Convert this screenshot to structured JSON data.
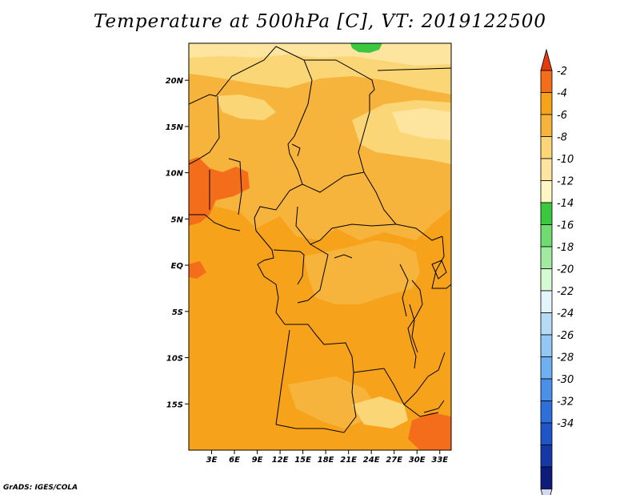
{
  "title": "Temperature at 500hPa [C], VT: 2019122500",
  "credit": "GrADS: IGES/COLA",
  "map": {
    "lon_range": [
      0,
      34.5
    ],
    "lat_range": [
      -20,
      24
    ],
    "lat_ticks": [
      {
        "lat": 20,
        "label": "20N"
      },
      {
        "lat": 15,
        "label": "15N"
      },
      {
        "lat": 10,
        "label": "10N"
      },
      {
        "lat": 5,
        "label": "5N"
      },
      {
        "lat": 0,
        "label": "EQ"
      },
      {
        "lat": -5,
        "label": "5S"
      },
      {
        "lat": -10,
        "label": "10S"
      },
      {
        "lat": -15,
        "label": "15S"
      }
    ],
    "lon_ticks": [
      {
        "lon": 3,
        "label": "3E"
      },
      {
        "lon": 6,
        "label": "6E"
      },
      {
        "lon": 9,
        "label": "9E"
      },
      {
        "lon": 12,
        "label": "12E"
      },
      {
        "lon": 15,
        "label": "15E"
      },
      {
        "lon": 18,
        "label": "18E"
      },
      {
        "lon": 21,
        "label": "21E"
      },
      {
        "lon": 24,
        "label": "24E"
      },
      {
        "lon": 27,
        "label": "27E"
      },
      {
        "lon": 30,
        "label": "30E"
      },
      {
        "lon": 33,
        "label": "33E"
      }
    ],
    "colors": {
      "base": "#f7a21b",
      "warm": "#f7b43c",
      "light": "#fbd677",
      "pale": "#fde59f",
      "hot": "#f46d1b",
      "green": "#3cc740",
      "border": "#000000"
    }
  },
  "colorbar": {
    "labels": [
      "-2",
      "-4",
      "-6",
      "-8",
      "-10",
      "-12",
      "-14",
      "-16",
      "-18",
      "-20",
      "-22",
      "-24",
      "-26",
      "-28",
      "-30",
      "-32",
      "-34"
    ],
    "colors": [
      "#e33b0e",
      "#f46d1b",
      "#f7a21b",
      "#f7b43c",
      "#fbd677",
      "#fde59f",
      "#fff6c4",
      "#3cc740",
      "#6fdb70",
      "#a0eb9f",
      "#d4f9d3",
      "#e4f4fb",
      "#b4dcf6",
      "#93c8f4",
      "#6fb0f0",
      "#4a90e8",
      "#2e6fdc",
      "#1f55c8",
      "#1438a8",
      "#0d1c7a",
      "#d4d8f5"
    ]
  }
}
